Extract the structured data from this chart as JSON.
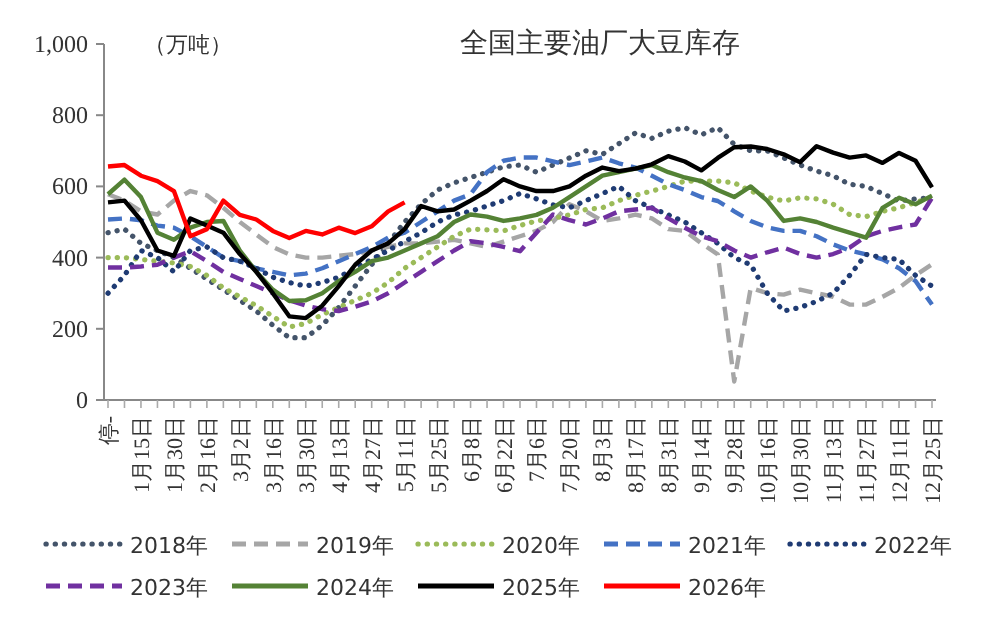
{
  "chart_data": {
    "type": "line",
    "title": "全国主要油厂大豆库存",
    "ylabel": "（万吨）",
    "categories": [
      "停-",
      null,
      "1月15日",
      null,
      "1月30日",
      null,
      "2月16日",
      null,
      "3月2日",
      null,
      "3月16日",
      null,
      "3月30日",
      null,
      "4月13日",
      null,
      "4月27日",
      null,
      "5月11日",
      null,
      "5月25日",
      null,
      "6月8日",
      null,
      "6月22日",
      null,
      "7月6日",
      null,
      "7月20日",
      null,
      "8月3日",
      null,
      "8月17日",
      null,
      "8月31日",
      null,
      "9月14日",
      null,
      "9月28日",
      null,
      "10月16日",
      null,
      "10月30日",
      null,
      "11月13日",
      null,
      "11月27日",
      null,
      "12月11日",
      null,
      "12月25日"
    ],
    "ylim": [
      0,
      1000
    ],
    "yticks": [
      0,
      200,
      400,
      600,
      800,
      {
        "value": 1000,
        "label": "1,000"
      }
    ],
    "grid": false,
    "legend": "bottom",
    "marker": "none",
    "series": [
      {
        "name": "2018年",
        "color": "#44546a",
        "line_style": "dotted",
        "values": [
          470,
          480,
          440,
          420,
          400,
          370,
          340,
          310,
          280,
          250,
          210,
          175,
          175,
          210,
          260,
          320,
          380,
          440,
          500,
          550,
          590,
          610,
          625,
          640,
          655,
          660,
          640,
          660,
          680,
          700,
          690,
          720,
          750,
          735,
          755,
          765,
          745,
          765,
          718,
          700,
          700,
          680,
          660,
          643,
          630,
          606,
          600,
          580,
          559,
          565,
          568
        ]
      },
      {
        "name": "2019年",
        "color": "#a6a6a6",
        "line_style": "dashed",
        "values": [
          578,
          560,
          530,
          521,
          560,
          587,
          575,
          540,
          500,
          465,
          430,
          409,
          400,
          400,
          405,
          410,
          420,
          430,
          440,
          440,
          445,
          450,
          440,
          430,
          445,
          460,
          475,
          500,
          550,
          530,
          503,
          510,
          521,
          510,
          480,
          475,
          440,
          409,
          52,
          315,
          300,
          296,
          310,
          300,
          290,
          268,
          268,
          290,
          315,
          350,
          381
        ]
      },
      {
        "name": "2020年",
        "color": "#9bbb59",
        "line_style": "dotted",
        "values": [
          400,
          400,
          395,
          390,
          385,
          375,
          350,
          315,
          290,
          265,
          235,
          205,
          215,
          240,
          260,
          280,
          300,
          330,
          370,
          400,
          430,
          460,
          480,
          478,
          475,
          490,
          503,
          510,
          520,
          535,
          540,
          560,
          575,
          587,
          600,
          615,
          615,
          615,
          610,
          587,
          570,
          559,
          568,
          565,
          550,
          521,
          515,
          530,
          540,
          555,
          568
        ]
      },
      {
        "name": "2021年",
        "color": "#4472c4",
        "line_style": "dashed",
        "values": [
          507,
          510,
          505,
          490,
          484,
          460,
          430,
          400,
          390,
          370,
          360,
          350,
          355,
          370,
          390,
          410,
          430,
          456,
          470,
          500,
          530,
          560,
          578,
          640,
          672,
          681,
          681,
          670,
          660,
          670,
          681,
          665,
          653,
          630,
          606,
          590,
          570,
          559,
          530,
          503,
          485,
          475,
          475,
          460,
          437,
          420,
          409,
          395,
          370,
          334,
          268
        ]
      },
      {
        "name": "2022年",
        "color": "#1f3b73",
        "line_style": "dotted",
        "values": [
          300,
          350,
          420,
          400,
          360,
          420,
          430,
          400,
          390,
          370,
          345,
          330,
          320,
          330,
          345,
          370,
          395,
          420,
          445,
          470,
          500,
          520,
          530,
          545,
          560,
          580,
          565,
          548,
          540,
          560,
          580,
          600,
          560,
          540,
          520,
          500,
          470,
          440,
          400,
          380,
          300,
          250,
          260,
          277,
          300,
          350,
          409,
          400,
          395,
          350,
          320
        ]
      },
      {
        "name": "2023年",
        "color": "#7030a0",
        "line_style": "dashed",
        "values": [
          372,
          372,
          375,
          380,
          400,
          418,
          390,
          360,
          340,
          320,
          300,
          280,
          265,
          255,
          250,
          262,
          277,
          300,
          330,
          360,
          390,
          420,
          446,
          440,
          430,
          418,
          470,
          521,
          505,
          493,
          510,
          530,
          535,
          540,
          510,
          484,
          460,
          446,
          420,
          400,
          415,
          428,
          410,
          400,
          410,
          428,
          460,
          475,
          485,
          493,
          568
        ]
      },
      {
        "name": "2024年",
        "color": "#548235",
        "line_style": "solid",
        "values": [
          578,
          619,
          570,
          470,
          450,
          484,
          500,
          503,
          420,
          360,
          310,
          278,
          280,
          300,
          334,
          360,
          390,
          400,
          420,
          440,
          460,
          500,
          521,
          515,
          503,
          510,
          520,
          540,
          570,
          600,
          630,
          640,
          650,
          660,
          640,
          625,
          615,
          590,
          570,
          600,
          560,
          503,
          510,
          500,
          484,
          470,
          456,
          540,
          568,
          550,
          574
        ]
      },
      {
        "name": "2025年",
        "color": "#000000",
        "line_style": "solid",
        "values": [
          555,
          560,
          505,
          420,
          405,
          510,
          490,
          470,
          410,
          360,
          300,
          235,
          230,
          265,
          320,
          380,
          420,
          440,
          480,
          545,
          530,
          535,
          560,
          587,
          620,
          600,
          587,
          587,
          600,
          630,
          653,
          643,
          650,
          662,
          685,
          670,
          645,
          680,
          710,
          712,
          705,
          690,
          668,
          713,
          695,
          681,
          687,
          666,
          694,
          672,
          597
        ]
      },
      {
        "name": "2026年",
        "color": "#ff0000",
        "line_style": "solid",
        "values": [
          656,
          660,
          630,
          615,
          587,
          460,
          480,
          560,
          520,
          507,
          475,
          455,
          475,
          465,
          484,
          469,
          488,
          530,
          555,
          null,
          null,
          null,
          null,
          null,
          null,
          null,
          null,
          null,
          null,
          null,
          null,
          null,
          null,
          null,
          null,
          null,
          null,
          null,
          null,
          null,
          null,
          null,
          null,
          null,
          null,
          null,
          null,
          null,
          null,
          null,
          null
        ]
      }
    ]
  }
}
